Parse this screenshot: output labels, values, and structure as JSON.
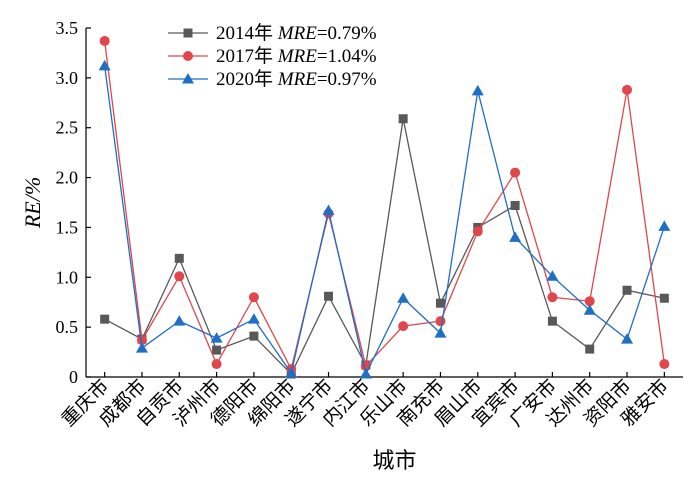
{
  "chart_data": {
    "type": "line",
    "xlabel": "城市",
    "ylabel": "RE/%",
    "ylim": [
      0,
      3.5
    ],
    "yticks": [
      "0",
      "0.5",
      "1.0",
      "1.5",
      "2.0",
      "2.5",
      "3.0",
      "3.5"
    ],
    "grid": false,
    "legend_position": "top-left",
    "categories": [
      "重庆市",
      "成都市",
      "自贡市",
      "泸州市",
      "德阳市",
      "绵阳市",
      "遂宁市",
      "内江市",
      "乐山市",
      "南充市",
      "眉山市",
      "宜宾市",
      "广安市",
      "达州市",
      "资阳市",
      "雅安市"
    ],
    "series": [
      {
        "name": "2014年 MRE=0.79%",
        "year": "2014年",
        "mre_label": "MRE",
        "mre_value": "=0.79%",
        "color": "#595959",
        "marker": "square",
        "values": [
          0.58,
          0.38,
          1.19,
          0.27,
          0.41,
          0.03,
          0.81,
          0.12,
          2.59,
          0.74,
          1.5,
          1.72,
          0.56,
          0.28,
          0.87,
          0.79
        ]
      },
      {
        "name": "2017年 MRE=1.04%",
        "year": "2017年",
        "mre_label": "MRE",
        "mre_value": "=1.04%",
        "color": "#e0474c",
        "marker": "circle",
        "values": [
          3.37,
          0.37,
          1.01,
          0.13,
          0.8,
          0.08,
          1.64,
          0.11,
          0.51,
          0.56,
          1.46,
          2.05,
          0.8,
          0.76,
          2.88,
          0.13
        ]
      },
      {
        "name": "2020年 MRE=0.97%",
        "year": "2020年",
        "mre_label": "MRE",
        "mre_value": "=0.97%",
        "color": "#1f6fc4",
        "marker": "triangle",
        "values": [
          3.12,
          0.29,
          0.56,
          0.39,
          0.58,
          0.04,
          1.67,
          0.03,
          0.79,
          0.44,
          2.87,
          1.4,
          1.01,
          0.67,
          0.38,
          1.51
        ]
      }
    ]
  }
}
